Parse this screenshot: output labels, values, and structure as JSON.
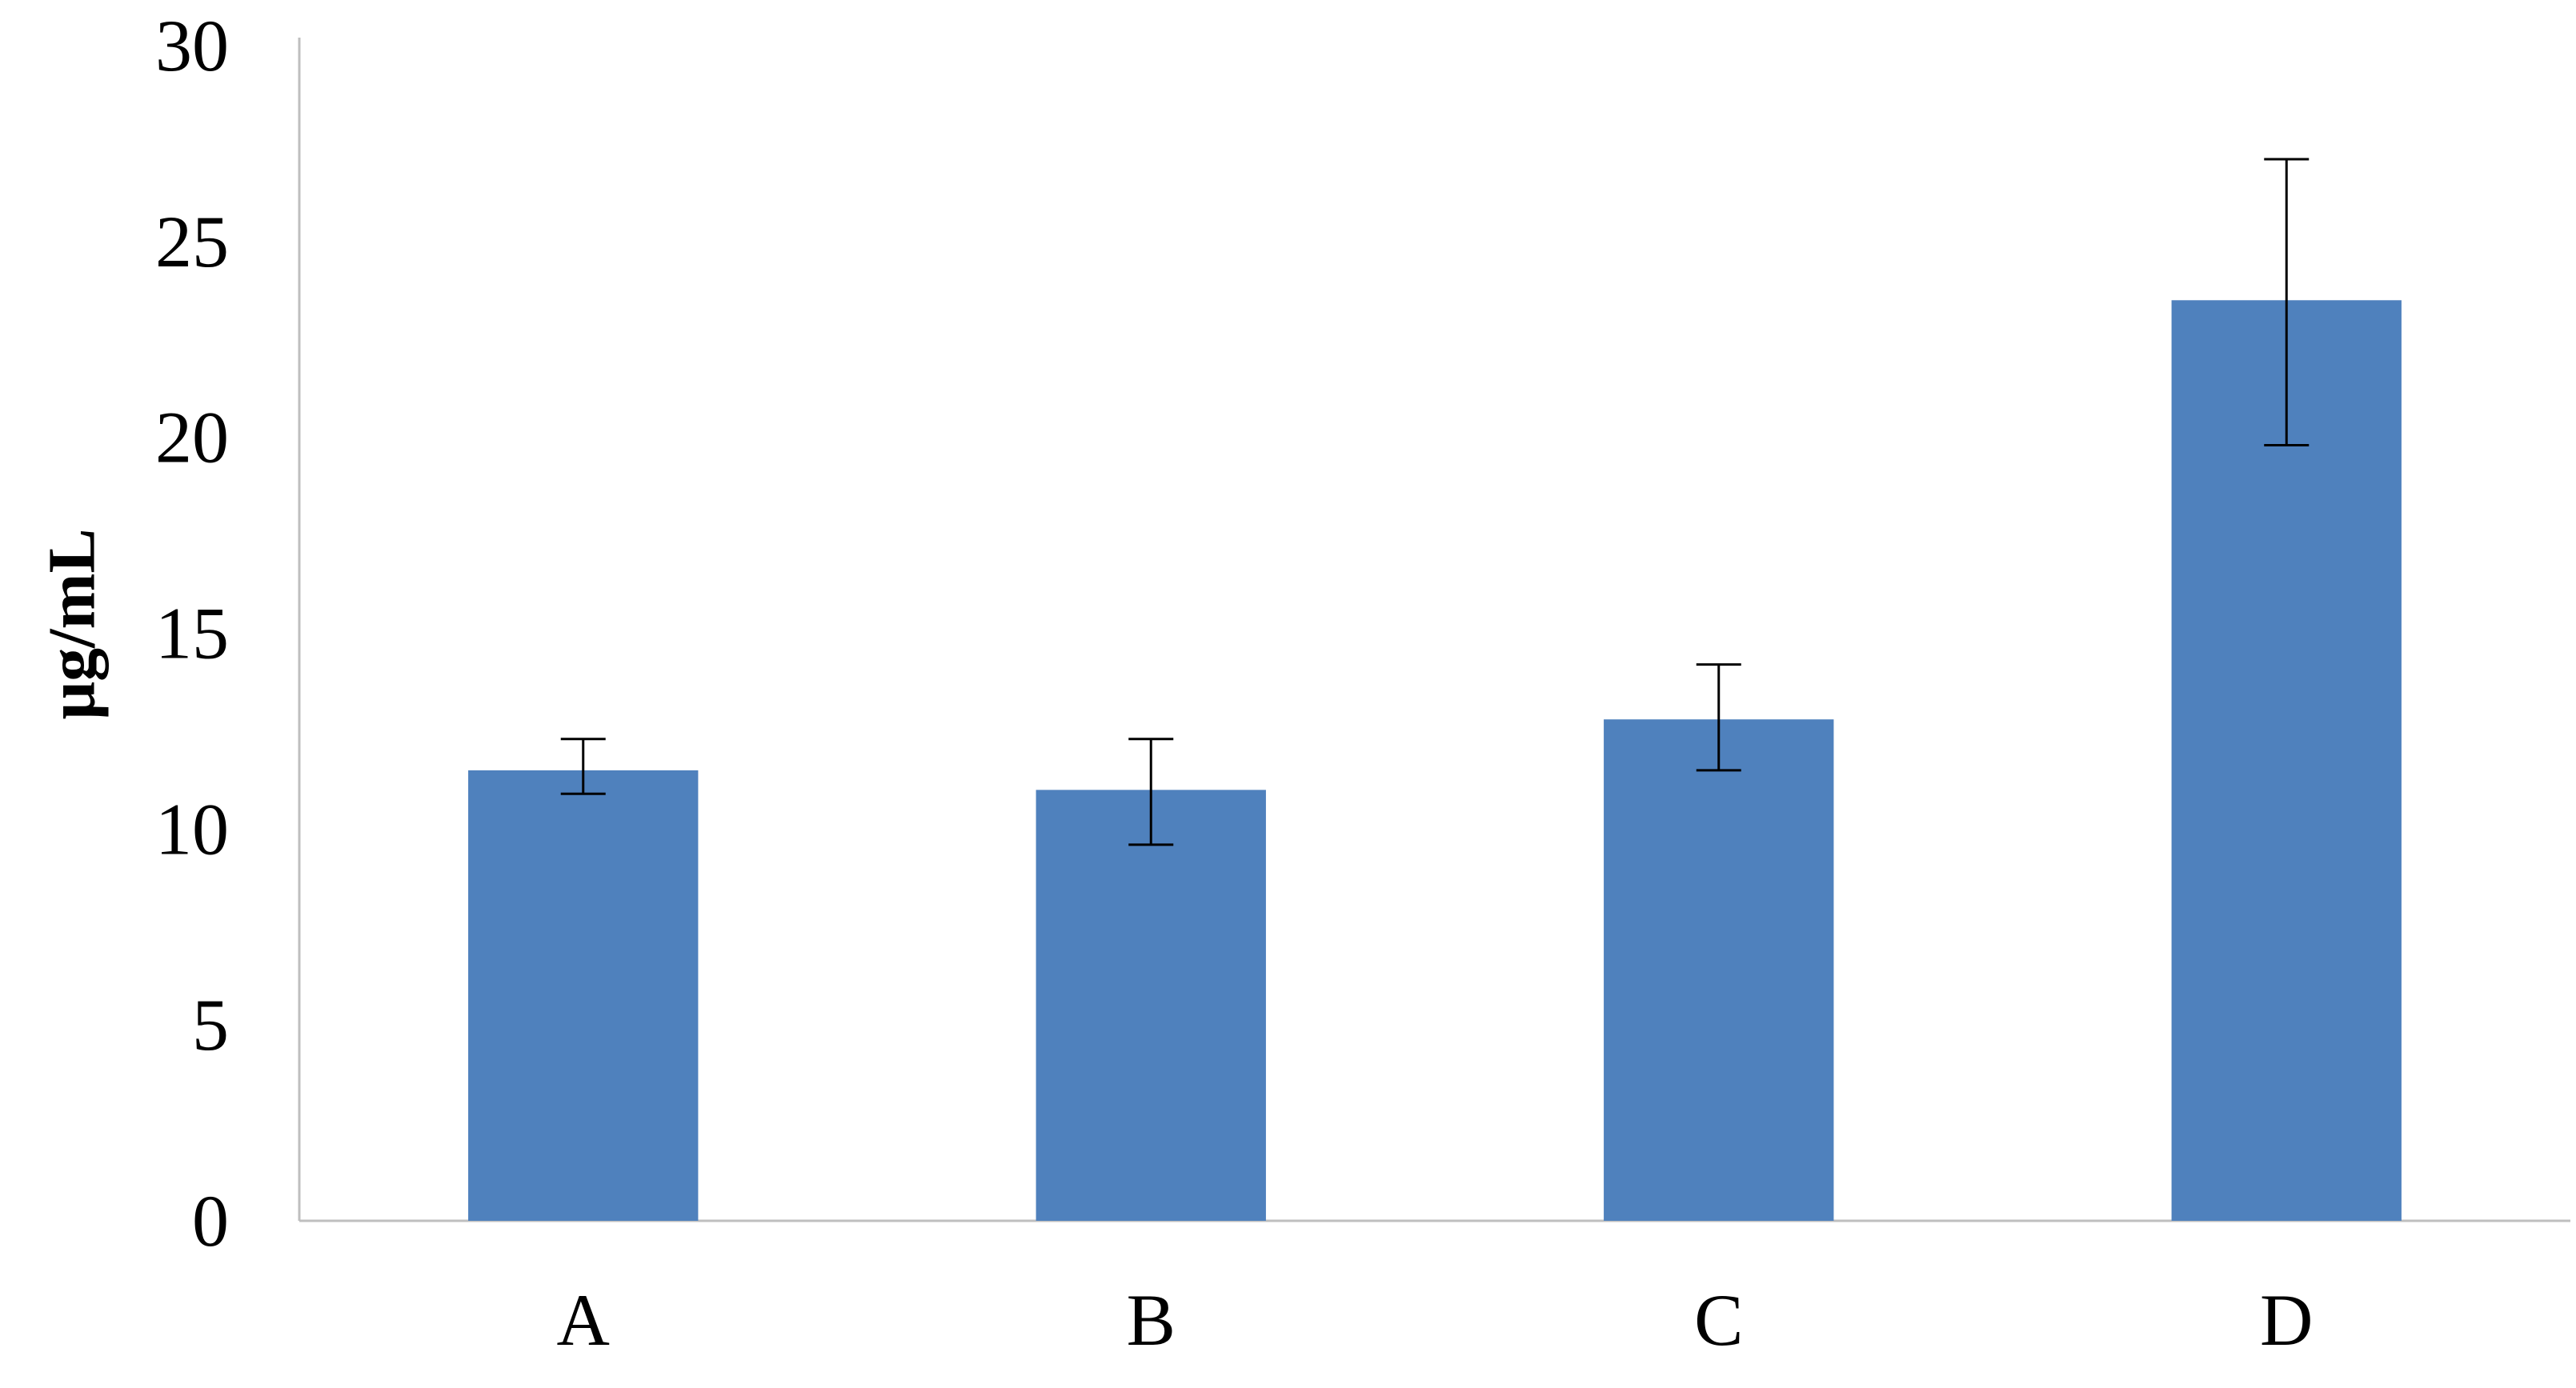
{
  "chart_data": {
    "type": "bar",
    "title": "",
    "xlabel": "",
    "ylabel": "μg/mL",
    "categories": [
      "A",
      "B",
      "C",
      "D"
    ],
    "values": [
      11.5,
      11.0,
      12.8,
      23.5
    ],
    "error_low": [
      10.9,
      9.6,
      11.5,
      19.8
    ],
    "error_high": [
      12.3,
      12.3,
      14.2,
      27.1
    ],
    "ylim": [
      0,
      30
    ],
    "yticks": [
      0,
      5,
      10,
      15,
      20,
      25,
      30
    ],
    "grid": false,
    "legend": "none",
    "colors": {
      "bar": "#4f81bd",
      "axis": "#bfbfbf",
      "error_bar": "#000000",
      "text": "#000000"
    }
  }
}
